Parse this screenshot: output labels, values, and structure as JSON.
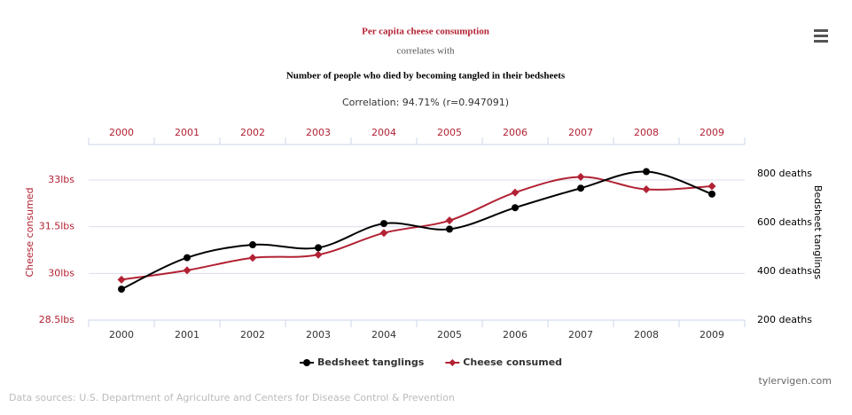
{
  "chart_data": {
    "type": "line",
    "title": "Per capita cheese consumption",
    "connector": "correlates with",
    "title2": "Number of people who died by becoming tangled in their bedsheets",
    "subtitle": "Correlation: 94.71% (r=0.947091)",
    "categories": [
      "2000",
      "2001",
      "2002",
      "2003",
      "2004",
      "2005",
      "2006",
      "2007",
      "2008",
      "2009"
    ],
    "series": [
      {
        "name": "Bedsheet tanglings",
        "color": "#000000",
        "marker": "circle",
        "axis": "y2",
        "values": [
          327,
          456,
          509,
          497,
          596,
          573,
          661,
          741,
          809,
          717
        ]
      },
      {
        "name": "Cheese consumed",
        "color": "#b22234",
        "marker": "diamond",
        "values": [
          29.8,
          30.1,
          30.5,
          30.6,
          31.3,
          31.7,
          32.6,
          33.1,
          32.7,
          32.8
        ]
      }
    ],
    "ylabel": "Cheese consumed",
    "y2label": "Bedsheet tanglings",
    "ylim": [
      28.5,
      34.14
    ],
    "yticks": [
      {
        "value": 28.5,
        "label": "28.5lbs"
      },
      {
        "value": 30,
        "label": "30lbs"
      },
      {
        "value": 31.5,
        "label": "31.5lbs"
      },
      {
        "value": 33,
        "label": "33lbs"
      }
    ],
    "y2lim": [
      200,
      920
    ],
    "y2ticks": [
      {
        "value": 200,
        "label": "200 deaths"
      },
      {
        "value": 400,
        "label": "400 deaths"
      },
      {
        "value": 600,
        "label": "600 deaths"
      },
      {
        "value": 800,
        "label": "800 deaths"
      }
    ],
    "grid": true,
    "legend": "bottom",
    "credit": "tylervigen.com",
    "source": "Data sources: U.S. Department of Agriculture and Centers for Disease Control & Prevention"
  }
}
